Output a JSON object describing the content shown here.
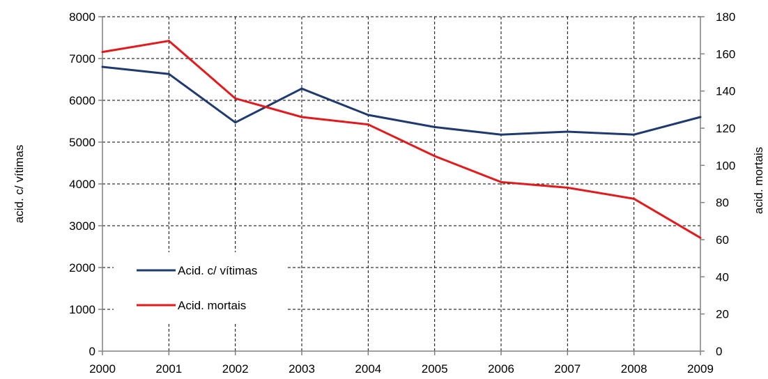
{
  "chart_data": {
    "type": "line",
    "title": "",
    "x": [
      "2000",
      "2001",
      "2002",
      "2003",
      "2004",
      "2005",
      "2006",
      "2007",
      "2008",
      "2009"
    ],
    "xlabel": "",
    "ylabel_left": "acid. c/ vítimas",
    "ylabel_right": "acid. mortais",
    "ylim_left": [
      0,
      8000
    ],
    "ylim_right": [
      0,
      180
    ],
    "yticks_left": [
      "0",
      "1000",
      "2000",
      "3000",
      "4000",
      "5000",
      "6000",
      "7000",
      "8000"
    ],
    "yticks_right": [
      "0",
      "20",
      "40",
      "60",
      "80",
      "100",
      "120",
      "140",
      "160",
      "180"
    ],
    "grid": true,
    "legend_position": "lower-left",
    "series": [
      {
        "name": "Acid. c/ vítimas",
        "axis": "left",
        "color": "#1f3a6e",
        "values": [
          6800,
          6630,
          5470,
          6280,
          5650,
          5360,
          5180,
          5250,
          5180,
          5600
        ]
      },
      {
        "name": "Acid. mortais",
        "axis": "right",
        "color": "#e31a1c",
        "values": [
          161,
          167,
          136,
          126,
          122,
          105,
          91,
          88,
          82,
          61
        ]
      }
    ]
  }
}
